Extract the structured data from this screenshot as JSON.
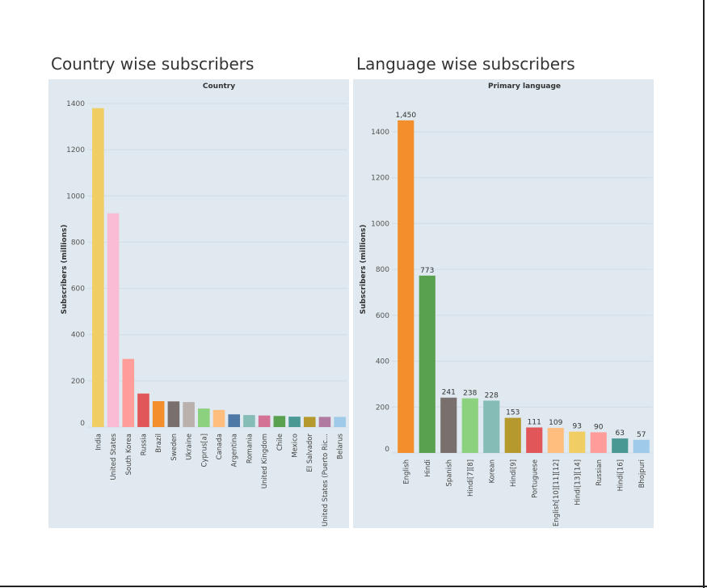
{
  "left_chart": {
    "heading": "Country wise subscribers",
    "header": "Country",
    "ylabel": "Subscribers (millions)"
  },
  "right_chart": {
    "heading": "Language wise subscribers",
    "header": "Primary language",
    "ylabel": "Subscribers (millions)"
  },
  "chart_data": [
    {
      "type": "bar",
      "title": "Country wise subscribers",
      "xlabel": "Country",
      "ylabel": "Subscribers (millions)",
      "ylim": [
        0,
        1400
      ],
      "yticks": [
        0,
        200,
        400,
        600,
        800,
        1000,
        1200,
        1400
      ],
      "grid": true,
      "categories": [
        "India",
        "United States",
        "South Korea",
        "Russia",
        "Brazil",
        "Sweden",
        "Ukraine",
        "Cyprus[a]",
        "Canada",
        "Argentina",
        "Romania",
        "United Kingdom",
        "Chile",
        "Mexico",
        "El Salvador",
        "United States (Puerto Ric...",
        "Belarus"
      ],
      "values": [
        1380,
        925,
        295,
        145,
        112,
        111,
        108,
        80,
        74,
        55,
        52,
        50,
        48,
        45,
        44,
        44,
        44
      ],
      "colors": [
        "#f1ce63",
        "#f9bcd4",
        "#ff9d9a",
        "#e15759",
        "#f28e2b",
        "#79706e",
        "#bab0ac",
        "#8cd17d",
        "#ffbe7d",
        "#4e79a7",
        "#86bcb6",
        "#d37295",
        "#59a14f",
        "#499894",
        "#b6992d",
        "#b07aa1",
        "#a0cbe8"
      ]
    },
    {
      "type": "bar",
      "title": "Language wise subscribers",
      "xlabel": "Primary language",
      "ylabel": "Subscribers (millions)",
      "ylim": [
        0,
        1450
      ],
      "yticks": [
        0,
        200,
        400,
        600,
        800,
        1000,
        1200,
        1400
      ],
      "grid": true,
      "categories": [
        "English",
        "Hindi",
        "Spanish",
        "Hindi[7][8]",
        "Korean",
        "Hindi[9]",
        "Portuguese",
        "English[10][11][12]",
        "Hindi[13][14]",
        "Russian",
        "Hindi[16]",
        "Bhojpuri"
      ],
      "values": [
        1450,
        773,
        241,
        238,
        228,
        153,
        111,
        109,
        93,
        90,
        63,
        57
      ],
      "data_labels": [
        "1,450",
        "773",
        "241",
        "238",
        "228",
        "153",
        "111",
        "109",
        "93",
        "90",
        "63",
        "57"
      ],
      "colors": [
        "#f28e2b",
        "#59a14f",
        "#79706e",
        "#8cd17d",
        "#86bcb6",
        "#b6992d",
        "#e15759",
        "#ffbe7d",
        "#f1ce63",
        "#ff9d9a",
        "#499894",
        "#a0cbe8"
      ]
    }
  ]
}
